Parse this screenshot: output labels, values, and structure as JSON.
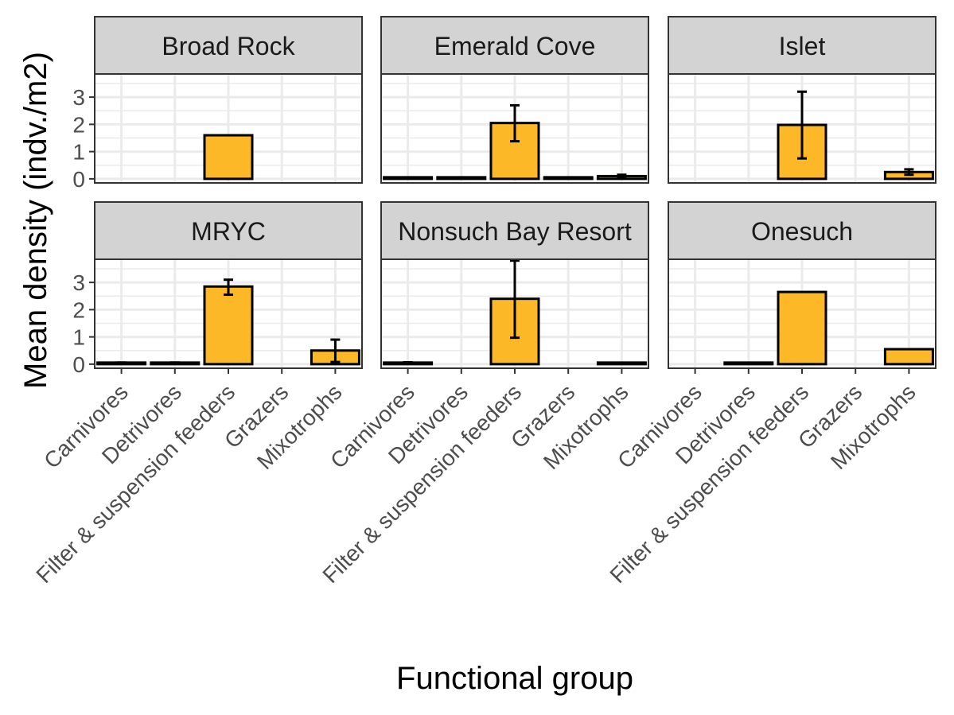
{
  "colors": {
    "bar_fill": "#FDB827",
    "bar_outline": "#000000",
    "strip_fill": "#D3D3D3",
    "grid": "#EBEBEB",
    "panel_border": "#333333"
  },
  "chart_data": {
    "type": "bar",
    "facet_layout": "2 rows x 3 columns",
    "xlabel": "Functional group",
    "ylabel": "Mean density (indv./m2)",
    "ylim": [
      -0.15,
      3.85
    ],
    "yticks": [
      0,
      1,
      2,
      3
    ],
    "grid": true,
    "legend": "none",
    "categories": [
      "Carnivores",
      "Detrivores",
      "Filter & suspension feeders",
      "Grazers",
      "Mixotrophs"
    ],
    "panels": [
      {
        "title": "Broad Rock",
        "values": [
          null,
          null,
          1.6,
          null,
          null
        ],
        "error_low": [
          null,
          null,
          null,
          null,
          null
        ],
        "error_high": [
          null,
          null,
          null,
          null,
          null
        ]
      },
      {
        "title": "Emerald Cove",
        "values": [
          0.03,
          0.02,
          2.05,
          0.02,
          0.1
        ],
        "error_low": [
          0.02,
          0.01,
          1.38,
          0.01,
          0.05
        ],
        "error_high": [
          0.04,
          0.03,
          2.7,
          0.03,
          0.15
        ]
      },
      {
        "title": "Islet",
        "values": [
          null,
          null,
          1.98,
          null,
          0.25
        ],
        "error_low": [
          null,
          null,
          0.75,
          null,
          0.15
        ],
        "error_high": [
          null,
          null,
          3.2,
          null,
          0.35
        ]
      },
      {
        "title": "MRYC",
        "values": [
          0.04,
          0.04,
          2.85,
          null,
          0.5
        ],
        "error_low": [
          0.02,
          0.02,
          2.55,
          null,
          0.08
        ],
        "error_high": [
          0.06,
          0.06,
          3.1,
          null,
          0.9
        ]
      },
      {
        "title": "Nonsuch Bay Resort",
        "values": [
          0.05,
          null,
          2.4,
          null,
          0.03
        ],
        "error_low": [
          0.03,
          null,
          0.97,
          null,
          0.01
        ],
        "error_high": [
          0.07,
          null,
          3.8,
          null,
          0.05
        ]
      },
      {
        "title": "Onesuch",
        "values": [
          null,
          0.05,
          2.65,
          null,
          0.55
        ],
        "error_low": [
          null,
          null,
          null,
          null,
          null
        ],
        "error_high": [
          null,
          null,
          null,
          null,
          null
        ]
      }
    ]
  }
}
